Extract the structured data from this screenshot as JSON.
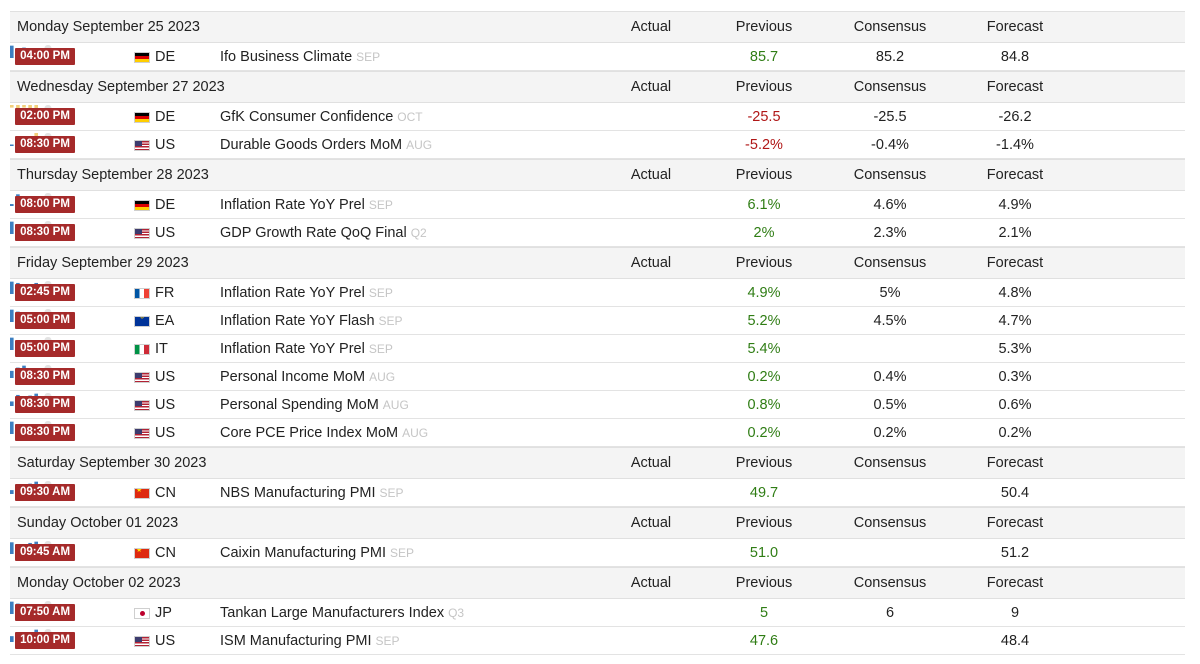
{
  "columns": {
    "actual": "Actual",
    "previous": "Previous",
    "consensus": "Consensus",
    "forecast": "Forecast"
  },
  "colors": {
    "time_badge": "#a52a2a",
    "positive": "#2f7d14",
    "negative": "#b01717",
    "period": "#c5c5c5",
    "spark_blue": "#3d7fc1",
    "spark_yellow": "#f2cf7b"
  },
  "days": [
    {
      "date": "Monday September 25 2023",
      "events": [
        {
          "time": "04:00 PM",
          "flag": "de",
          "country": "DE",
          "event": "Ifo Business Climate",
          "period": "SEP",
          "actual": "",
          "previous": "85.7",
          "previous_color": "green",
          "consensus": "85.2",
          "forecast": "84.8",
          "spark": [
            0.95,
            0.55,
            0.8,
            0.45,
            0.2
          ]
        }
      ]
    },
    {
      "date": "Wednesday September 27 2023",
      "events": [
        {
          "time": "02:00 PM",
          "flag": "de",
          "country": "DE",
          "event": "GfK Consumer Confidence",
          "period": "OCT",
          "actual": "",
          "previous": "-25.5",
          "previous_color": "red",
          "consensus": "-25.5",
          "forecast": "-26.2",
          "spark": [
            -0.2,
            -0.3,
            -0.2,
            -0.35,
            -0.95
          ]
        },
        {
          "time": "08:30 PM",
          "flag": "us",
          "country": "US",
          "event": "Durable Goods Orders MoM",
          "period": "AUG",
          "actual": "",
          "previous": "-5.2%",
          "previous_color": "red",
          "consensus": "-0.4%",
          "forecast": "-1.4%",
          "spark": [
            0.1,
            0.2,
            0.35,
            0.5,
            -0.45
          ]
        }
      ]
    },
    {
      "date": "Thursday September 28 2023",
      "events": [
        {
          "time": "08:00 PM",
          "flag": "de",
          "country": "DE",
          "event": "Inflation Rate YoY Prel",
          "period": "SEP",
          "actual": "",
          "previous": "6.1%",
          "previous_color": "green",
          "consensus": "4.6%",
          "forecast": "4.9%",
          "spark": [
            0.15,
            0.9,
            0.6,
            0.5,
            0.15
          ]
        },
        {
          "time": "08:30 PM",
          "flag": "us",
          "country": "US",
          "event": "GDP Growth Rate QoQ Final",
          "period": "Q2",
          "actual": "",
          "previous": "2%",
          "previous_color": "green",
          "consensus": "2.3%",
          "forecast": "2.1%",
          "spark": [
            0.95,
            0.6,
            0.5,
            0.3,
            0.2
          ]
        }
      ]
    },
    {
      "date": "Friday September 29 2023",
      "events": [
        {
          "time": "02:45 PM",
          "flag": "fr",
          "country": "FR",
          "event": "Inflation Rate YoY Prel",
          "period": "SEP",
          "actual": "",
          "previous": "4.9%",
          "previous_color": "green",
          "consensus": "5%",
          "forecast": "4.8%",
          "spark": [
            0.95,
            0.85,
            0.45,
            0.7,
            0.85
          ]
        },
        {
          "time": "05:00 PM",
          "flag": "eu",
          "country": "EA",
          "event": "Inflation Rate YoY Flash",
          "period": "SEP",
          "actual": "",
          "previous": "5.2%",
          "previous_color": "green",
          "consensus": "4.5%",
          "forecast": "4.7%",
          "spark": [
            0.95,
            0.8,
            0.55,
            0.4,
            0.3
          ]
        },
        {
          "time": "05:00 PM",
          "flag": "it",
          "country": "IT",
          "event": "Inflation Rate YoY Prel",
          "period": "SEP",
          "actual": "",
          "previous": "5.4%",
          "previous_color": "green",
          "consensus": "",
          "forecast": "5.3%",
          "spark": [
            0.95,
            0.7,
            0.5,
            0.4,
            0.35
          ]
        },
        {
          "time": "08:30 PM",
          "flag": "us",
          "country": "US",
          "event": "Personal Income MoM",
          "period": "AUG",
          "actual": "",
          "previous": "0.2%",
          "previous_color": "green",
          "consensus": "0.4%",
          "forecast": "0.3%",
          "spark": [
            0.55,
            0.8,
            0.95,
            0.5,
            0.65
          ]
        },
        {
          "time": "08:30 PM",
          "flag": "us",
          "country": "US",
          "event": "Personal Spending MoM",
          "period": "AUG",
          "actual": "",
          "previous": "0.8%",
          "previous_color": "green",
          "consensus": "0.5%",
          "forecast": "0.6%",
          "spark": [
            0.35,
            0.85,
            0.6,
            0.8,
            0.95
          ]
        },
        {
          "time": "08:30 PM",
          "flag": "us",
          "country": "US",
          "event": "Core PCE Price Index MoM",
          "period": "AUG",
          "actual": "",
          "previous": "0.2%",
          "previous_color": "green",
          "consensus": "0.2%",
          "forecast": "0.2%",
          "spark": [
            0.95,
            0.6,
            0.55,
            0.3,
            0.35
          ]
        }
      ]
    },
    {
      "date": "Saturday September 30 2023",
      "events": [
        {
          "time": "09:30 AM",
          "flag": "cn",
          "country": "CN",
          "event": "NBS Manufacturing PMI",
          "period": "SEP",
          "actual": "",
          "previous": "49.7",
          "previous_color": "green",
          "consensus": "",
          "forecast": "50.4",
          "spark": [
            0.3,
            0.4,
            0.55,
            0.8,
            0.95
          ]
        }
      ]
    },
    {
      "date": "Sunday October 01 2023",
      "events": [
        {
          "time": "09:45 AM",
          "flag": "cn",
          "country": "CN",
          "event": "Caixin Manufacturing PMI",
          "period": "SEP",
          "actual": "",
          "previous": "51.0",
          "previous_color": "green",
          "consensus": "",
          "forecast": "51.2",
          "spark": [
            0.9,
            0.7,
            0.5,
            0.85,
            0.95
          ]
        }
      ]
    },
    {
      "date": "Monday October 02 2023",
      "events": [
        {
          "time": "07:50 AM",
          "flag": "jp",
          "country": "JP",
          "event": "Tankan Large Manufacturers Index",
          "period": "Q3",
          "actual": "",
          "previous": "5",
          "previous_color": "green",
          "consensus": "6",
          "forecast": "9",
          "spark": [
            0.95,
            0.8,
            0.4,
            0.55,
            0.7
          ]
        },
        {
          "time": "10:00 PM",
          "flag": "us",
          "country": "US",
          "event": "ISM Manufacturing PMI",
          "period": "SEP",
          "actual": "",
          "previous": "47.6",
          "previous_color": "green",
          "consensus": "",
          "forecast": "48.4",
          "spark": [
            0.45,
            0.3,
            0.55,
            0.6,
            0.95
          ]
        }
      ]
    }
  ]
}
